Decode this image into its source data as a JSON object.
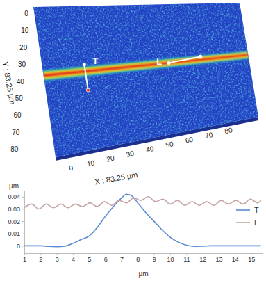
{
  "chart_data": [
    {
      "type": "surface",
      "xlabel": "X : 83.25 µm",
      "ylabel": "Y : 83.25 µm",
      "xlim": [
        0,
        83.25
      ],
      "ylim": [
        0,
        83.25
      ],
      "xticks": [
        0,
        10,
        20,
        30,
        40,
        50,
        60,
        70,
        80
      ],
      "yticks": [
        0,
        10,
        20,
        30,
        40,
        50,
        60,
        70,
        80
      ],
      "ridge_center_y": 38,
      "ridge_half_width": 3,
      "profiles": [
        {
          "label": "T",
          "x": [
            17,
            17
          ],
          "y": [
            34,
            49
          ]
        },
        {
          "label": "L",
          "x": [
            51,
            64
          ],
          "y": [
            38,
            36
          ]
        }
      ]
    },
    {
      "type": "line",
      "xlabel": "µm",
      "ylabel": "µm",
      "xlim": [
        1,
        15.7
      ],
      "ylim": [
        -0.006,
        0.045
      ],
      "xticks": [
        1,
        2,
        3,
        4,
        5,
        6,
        7,
        8,
        9,
        10,
        11,
        12,
        13,
        14,
        15
      ],
      "yticks": [
        0,
        0.01,
        0.02,
        0.03,
        0.04
      ],
      "grid": false,
      "legend": "right",
      "series": [
        {
          "name": "T",
          "color": "#5b8bd0",
          "x": [
            1,
            1.5,
            2,
            2.5,
            3,
            3.5,
            4,
            4.5,
            5,
            5.5,
            6,
            6.5,
            7,
            7.3,
            7.6,
            8,
            8.5,
            9,
            9.5,
            10,
            10.5,
            11,
            11.5,
            12,
            12.5,
            13,
            14,
            15,
            15.6
          ],
          "values": [
            0,
            0,
            0,
            -0.0005,
            -0.0007,
            -0.0003,
            0.002,
            0.005,
            0.008,
            0.015,
            0.024,
            0.032,
            0.039,
            0.042,
            0.041,
            0.035,
            0.027,
            0.02,
            0.013,
            0.007,
            0.003,
            0.0005,
            -0.0005,
            -0.0003,
            0,
            0,
            0,
            0,
            0
          ]
        },
        {
          "name": "L",
          "color": "#c4a4a4",
          "x": [
            1,
            1.45,
            1.9,
            2.35,
            2.8,
            3.25,
            3.7,
            4.15,
            4.6,
            5.05,
            5.5,
            5.95,
            6.4,
            6.85,
            7.3,
            7.75,
            8.2,
            8.65,
            9.1,
            9.55,
            10,
            10.45,
            10.9,
            11.35,
            11.8,
            12.25,
            12.7,
            13.15,
            13.6,
            14.05,
            14.5,
            14.95,
            15.4,
            15.6
          ],
          "values": [
            0.031,
            0.034,
            0.03,
            0.034,
            0.031,
            0.034,
            0.031,
            0.034,
            0.032,
            0.035,
            0.032,
            0.036,
            0.033,
            0.037,
            0.035,
            0.039,
            0.037,
            0.04,
            0.036,
            0.038,
            0.034,
            0.037,
            0.033,
            0.036,
            0.033,
            0.036,
            0.033,
            0.037,
            0.034,
            0.037,
            0.034,
            0.038,
            0.035,
            0.037
          ]
        }
      ]
    }
  ]
}
